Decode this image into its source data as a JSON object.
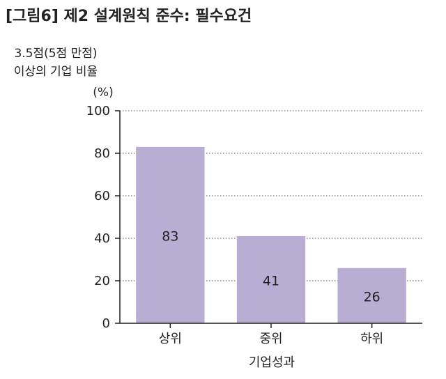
{
  "chart_data": {
    "type": "bar",
    "title": "[그림6] 제2 설계원칙 준수: 필수요건",
    "ylabel_lines": [
      "3.5점(5점 만점)",
      "이상의 기업 비율"
    ],
    "yunit": "(%)",
    "xlabel": "기업성과",
    "categories": [
      "상위",
      "중위",
      "하위"
    ],
    "values": [
      83,
      41,
      26
    ],
    "value_labels": [
      "83",
      "41",
      "26"
    ],
    "ylim": [
      0,
      100
    ],
    "yticks": [
      "0",
      "20",
      "40",
      "60",
      "80",
      "100"
    ],
    "grid": true,
    "bar_color": "#b8aed3",
    "grid_color": "#555555"
  }
}
